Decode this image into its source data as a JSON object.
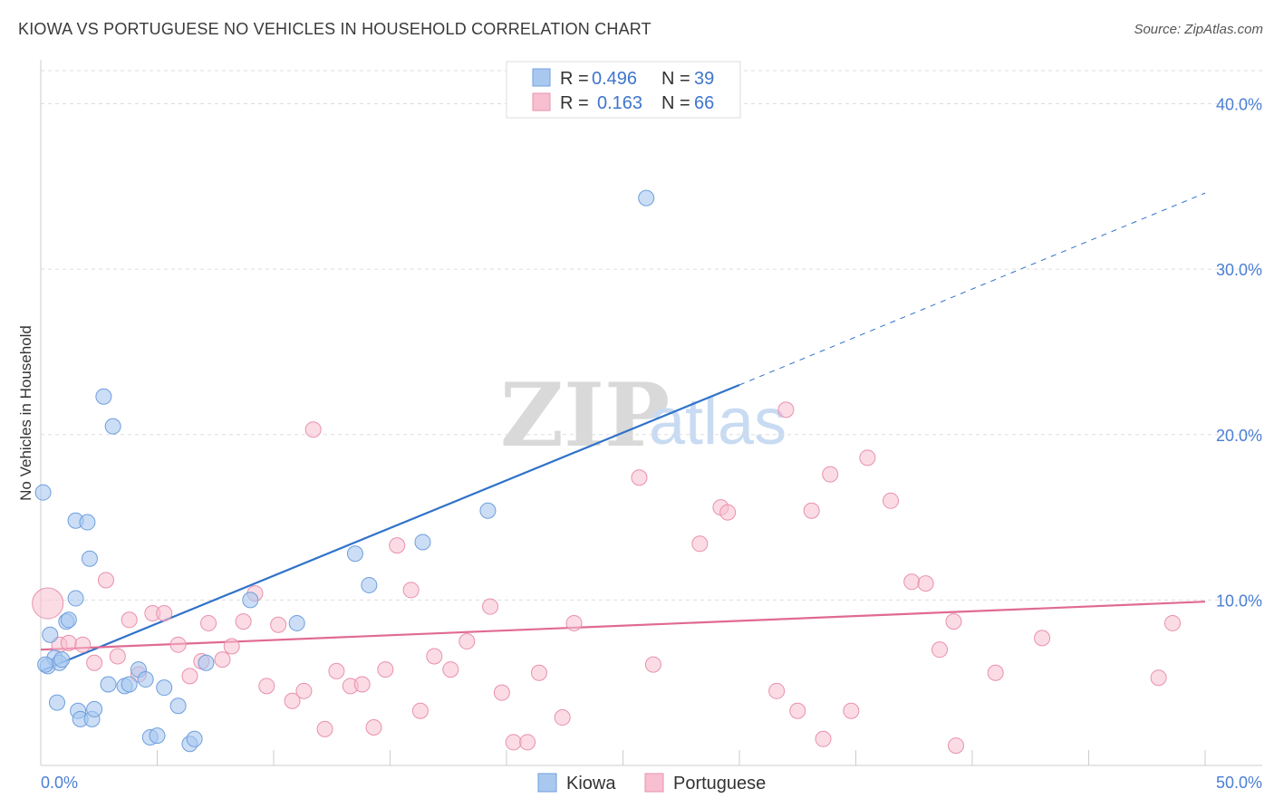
{
  "header": {
    "title": "KIOWA VS PORTUGUESE NO VEHICLES IN HOUSEHOLD CORRELATION CHART",
    "source": "Source: ZipAtlas.com"
  },
  "watermark": {
    "part1": "ZIP",
    "part2": "atlas"
  },
  "legend": {
    "kiowa": {
      "r_label": "R = ",
      "r_value": "0.496",
      "n_label": "N = ",
      "n_value": "39"
    },
    "portuguese": {
      "r_label": "R = ",
      "r_value": "0.163",
      "n_label": "N = ",
      "n_value": "66"
    }
  },
  "bottom_legend": {
    "kiowa": "Kiowa",
    "portuguese": "Portuguese"
  },
  "chart_data": {
    "type": "scatter",
    "title": "KIOWA VS PORTUGUESE NO VEHICLES IN HOUSEHOLD CORRELATION CHART",
    "xlabel": "",
    "ylabel": "No Vehicles in Household",
    "xlim": [
      0,
      50
    ],
    "ylim": [
      0,
      42
    ],
    "x_tick_labels": {
      "min": "0.0%",
      "max": "50.0%"
    },
    "y_ticks": [
      {
        "value": 10,
        "label": "10.0%"
      },
      {
        "value": 20,
        "label": "20.0%"
      },
      {
        "value": 30,
        "label": "30.0%"
      },
      {
        "value": 40,
        "label": "40.0%"
      }
    ],
    "grid": true,
    "colors": {
      "kiowa_fill": "#a9c8f0",
      "kiowa_stroke": "#6f9fdc",
      "kiowa_line": "#2f72c9",
      "portuguese_fill": "#f7bfd0",
      "portuguese_stroke": "#e990ae",
      "portuguese_line": "#e06a93",
      "axis_text": "#4a7fd4",
      "grid": "#dddddd"
    },
    "series": [
      {
        "name": "Kiowa",
        "R": 0.496,
        "N": 39,
        "trend": {
          "x0": 0,
          "y0": 5.7,
          "x1": 30,
          "y1": 23.0,
          "dash_to_x": 50,
          "dash_to_y": 34.6
        },
        "points": [
          [
            0.1,
            16.5
          ],
          [
            0.3,
            6.0
          ],
          [
            0.4,
            7.9
          ],
          [
            0.6,
            6.5
          ],
          [
            0.7,
            3.8
          ],
          [
            0.8,
            6.2
          ],
          [
            0.9,
            6.4
          ],
          [
            1.1,
            8.7
          ],
          [
            1.2,
            8.8
          ],
          [
            1.5,
            14.8
          ],
          [
            1.5,
            10.1
          ],
          [
            1.6,
            3.3
          ],
          [
            1.7,
            2.8
          ],
          [
            2.0,
            14.7
          ],
          [
            2.1,
            12.5
          ],
          [
            2.2,
            2.8
          ],
          [
            2.3,
            3.4
          ],
          [
            2.7,
            22.3
          ],
          [
            2.9,
            4.9
          ],
          [
            3.1,
            20.5
          ],
          [
            3.6,
            4.8
          ],
          [
            3.8,
            4.9
          ],
          [
            4.2,
            5.8
          ],
          [
            4.5,
            5.2
          ],
          [
            4.7,
            1.7
          ],
          [
            5.0,
            1.8
          ],
          [
            5.3,
            4.7
          ],
          [
            5.9,
            3.6
          ],
          [
            6.4,
            1.3
          ],
          [
            6.6,
            1.6
          ],
          [
            7.1,
            6.2
          ],
          [
            9.0,
            10.0
          ],
          [
            11.0,
            8.6
          ],
          [
            13.5,
            12.8
          ],
          [
            14.1,
            10.9
          ],
          [
            16.4,
            13.5
          ],
          [
            19.2,
            15.4
          ],
          [
            26.0,
            34.3
          ],
          [
            0.2,
            6.1
          ]
        ]
      },
      {
        "name": "Portuguese",
        "R": 0.163,
        "N": 66,
        "trend": {
          "x0": 0,
          "y0": 7.0,
          "x1": 50,
          "y1": 9.9
        },
        "points": [
          [
            0.3,
            9.8
          ],
          [
            0.8,
            7.3
          ],
          [
            1.2,
            7.4
          ],
          [
            1.8,
            7.3
          ],
          [
            2.3,
            6.2
          ],
          [
            2.8,
            11.2
          ],
          [
            3.3,
            6.6
          ],
          [
            3.8,
            8.8
          ],
          [
            4.2,
            5.5
          ],
          [
            4.8,
            9.2
          ],
          [
            5.3,
            9.2
          ],
          [
            5.9,
            7.3
          ],
          [
            6.4,
            5.4
          ],
          [
            6.9,
            6.3
          ],
          [
            7.2,
            8.6
          ],
          [
            7.8,
            6.4
          ],
          [
            8.2,
            7.2
          ],
          [
            8.7,
            8.7
          ],
          [
            9.2,
            10.4
          ],
          [
            9.7,
            4.8
          ],
          [
            10.2,
            8.5
          ],
          [
            10.8,
            3.9
          ],
          [
            11.3,
            4.5
          ],
          [
            11.7,
            20.3
          ],
          [
            12.2,
            2.2
          ],
          [
            12.7,
            5.7
          ],
          [
            13.3,
            4.8
          ],
          [
            13.8,
            4.9
          ],
          [
            14.3,
            2.3
          ],
          [
            14.8,
            5.8
          ],
          [
            15.3,
            13.3
          ],
          [
            15.9,
            10.6
          ],
          [
            16.3,
            3.3
          ],
          [
            16.9,
            6.6
          ],
          [
            17.6,
            5.8
          ],
          [
            18.3,
            7.5
          ],
          [
            19.3,
            9.6
          ],
          [
            19.8,
            4.4
          ],
          [
            20.3,
            1.4
          ],
          [
            20.9,
            1.4
          ],
          [
            21.4,
            5.6
          ],
          [
            22.4,
            2.9
          ],
          [
            22.9,
            8.6
          ],
          [
            25.7,
            17.4
          ],
          [
            26.3,
            6.1
          ],
          [
            28.3,
            13.4
          ],
          [
            29.2,
            15.6
          ],
          [
            29.5,
            15.3
          ],
          [
            31.6,
            4.5
          ],
          [
            32.0,
            21.5
          ],
          [
            32.5,
            3.3
          ],
          [
            33.1,
            15.4
          ],
          [
            33.6,
            1.6
          ],
          [
            33.9,
            17.6
          ],
          [
            34.8,
            3.3
          ],
          [
            35.5,
            18.6
          ],
          [
            36.5,
            16.0
          ],
          [
            37.4,
            11.1
          ],
          [
            38.0,
            11.0
          ],
          [
            38.6,
            7.0
          ],
          [
            39.2,
            8.7
          ],
          [
            39.3,
            1.2
          ],
          [
            41.0,
            5.6
          ],
          [
            43.0,
            7.7
          ],
          [
            48.0,
            5.3
          ],
          [
            48.6,
            8.6
          ]
        ]
      }
    ]
  }
}
